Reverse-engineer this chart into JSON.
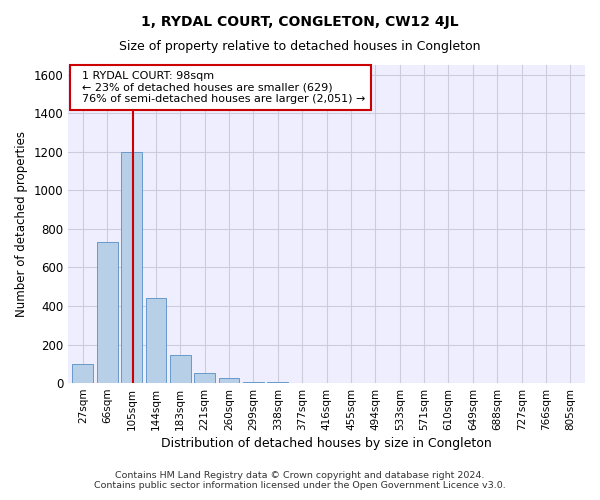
{
  "title": "1, RYDAL COURT, CONGLETON, CW12 4JL",
  "subtitle": "Size of property relative to detached houses in Congleton",
  "xlabel": "Distribution of detached houses by size in Congleton",
  "ylabel": "Number of detached properties",
  "categories": [
    "27sqm",
    "66sqm",
    "105sqm",
    "144sqm",
    "183sqm",
    "221sqm",
    "260sqm",
    "299sqm",
    "338sqm",
    "377sqm",
    "416sqm",
    "455sqm",
    "494sqm",
    "533sqm",
    "571sqm",
    "610sqm",
    "649sqm",
    "688sqm",
    "727sqm",
    "766sqm",
    "805sqm"
  ],
  "values": [
    100,
    730,
    1200,
    440,
    145,
    50,
    25,
    8,
    3,
    0,
    0,
    0,
    0,
    0,
    0,
    0,
    0,
    0,
    0,
    0,
    0
  ],
  "bar_color": "#b8cfe8",
  "bar_edgecolor": "#6699cc",
  "ylim": [
    0,
    1650
  ],
  "yticks": [
    0,
    200,
    400,
    600,
    800,
    1000,
    1200,
    1400,
    1600
  ],
  "property_line_x": 2.05,
  "property_line_color": "#cc0000",
  "annotation_text": "  1 RYDAL COURT: 98sqm\n  ← 23% of detached houses are smaller (629)\n  76% of semi-detached houses are larger (2,051) →",
  "annotation_box_color": "#cc0000",
  "footer_line1": "Contains HM Land Registry data © Crown copyright and database right 2024.",
  "footer_line2": "Contains public sector information licensed under the Open Government Licence v3.0.",
  "bg_color": "#eeeeff",
  "grid_color": "#ccccdd",
  "title_fontsize": 10,
  "subtitle_fontsize": 9
}
